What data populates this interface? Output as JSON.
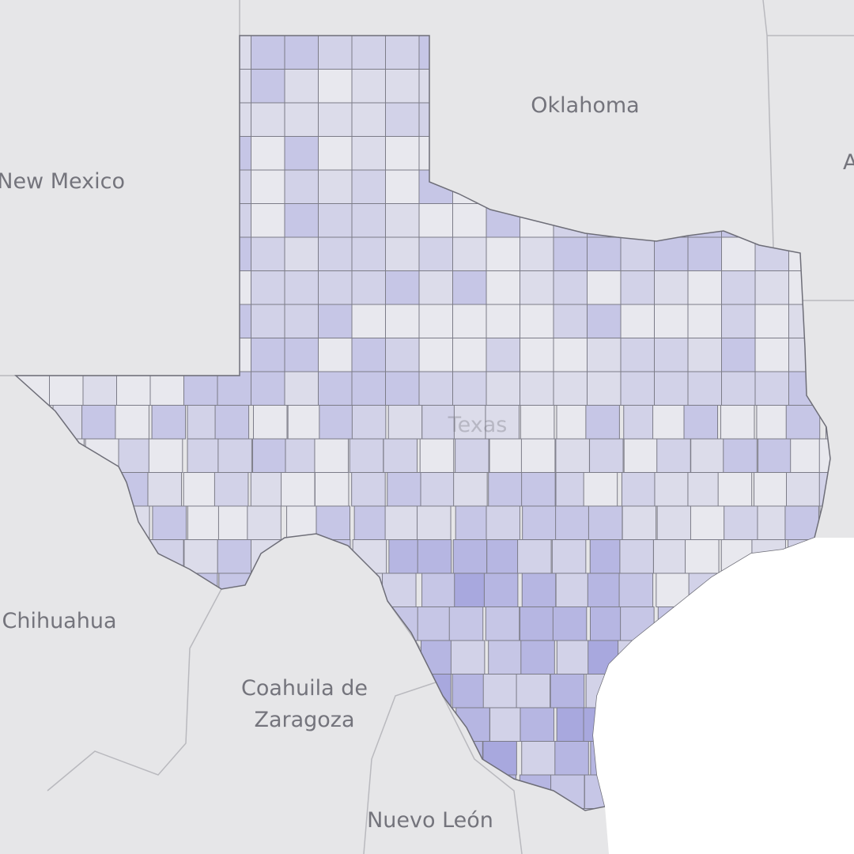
{
  "map": {
    "labels": {
      "oklahoma": "Oklahoma",
      "new_mexico": "New Mexico",
      "arkansas": "A",
      "texas": "Texas",
      "chihuahua": "Chihuahua",
      "coahuila": "Coahuila de",
      "coahuila_2": "Zaragoza",
      "nuevo_leon": "Nuevo León"
    }
  }
}
